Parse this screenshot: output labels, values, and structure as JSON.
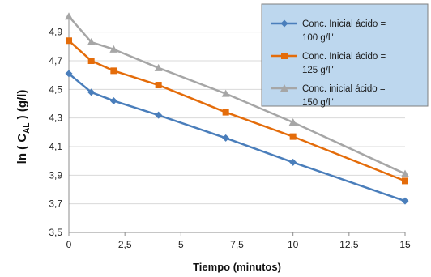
{
  "chart_data": {
    "type": "line",
    "title": "",
    "xlabel": "Tiempo (minutos)",
    "ylabel_parts": {
      "pre": "ln ( C",
      "sub": "AL",
      "post": " ) (g/l)"
    },
    "xlim": [
      0,
      15
    ],
    "ylim": [
      3.5,
      5.0
    ],
    "x_ticks": [
      0,
      2.5,
      5,
      7.5,
      10,
      12.5,
      15
    ],
    "x_tick_labels": [
      "0",
      "2,5",
      "5",
      "7,5",
      "10",
      "12,5",
      "15"
    ],
    "y_ticks": [
      3.5,
      3.7,
      3.9,
      4.1,
      4.3,
      4.5,
      4.7,
      4.9
    ],
    "y_tick_labels": [
      "3,5",
      "3,7",
      "3,9",
      "4,1",
      "4,3",
      "4,5",
      "4,7",
      "4,9"
    ],
    "grid": "horizontal",
    "legend_position": "top-right",
    "series": [
      {
        "name_lines": [
          "Conc. Inicial ácido =",
          "100 g/l\""
        ],
        "color": "#4a7ebb",
        "marker": "diamond",
        "x": [
          0,
          1,
          2,
          4,
          7,
          10,
          15
        ],
        "y": [
          4.61,
          4.48,
          4.42,
          4.32,
          4.16,
          3.99,
          3.72
        ]
      },
      {
        "name_lines": [
          "Conc. Inicial ácido =",
          "125 g/l\""
        ],
        "color": "#e46c0a",
        "marker": "square",
        "x": [
          0,
          1,
          2,
          4,
          7,
          10,
          15
        ],
        "y": [
          4.84,
          4.7,
          4.63,
          4.53,
          4.34,
          4.17,
          3.86
        ]
      },
      {
        "name_lines": [
          "Conc. inicial ácido =",
          "150 g/l\""
        ],
        "color": "#a6a6a6",
        "marker": "triangle",
        "x": [
          0,
          1,
          2,
          4,
          7,
          10,
          15
        ],
        "y": [
          5.01,
          4.83,
          4.78,
          4.65,
          4.47,
          4.27,
          3.91
        ]
      }
    ]
  }
}
